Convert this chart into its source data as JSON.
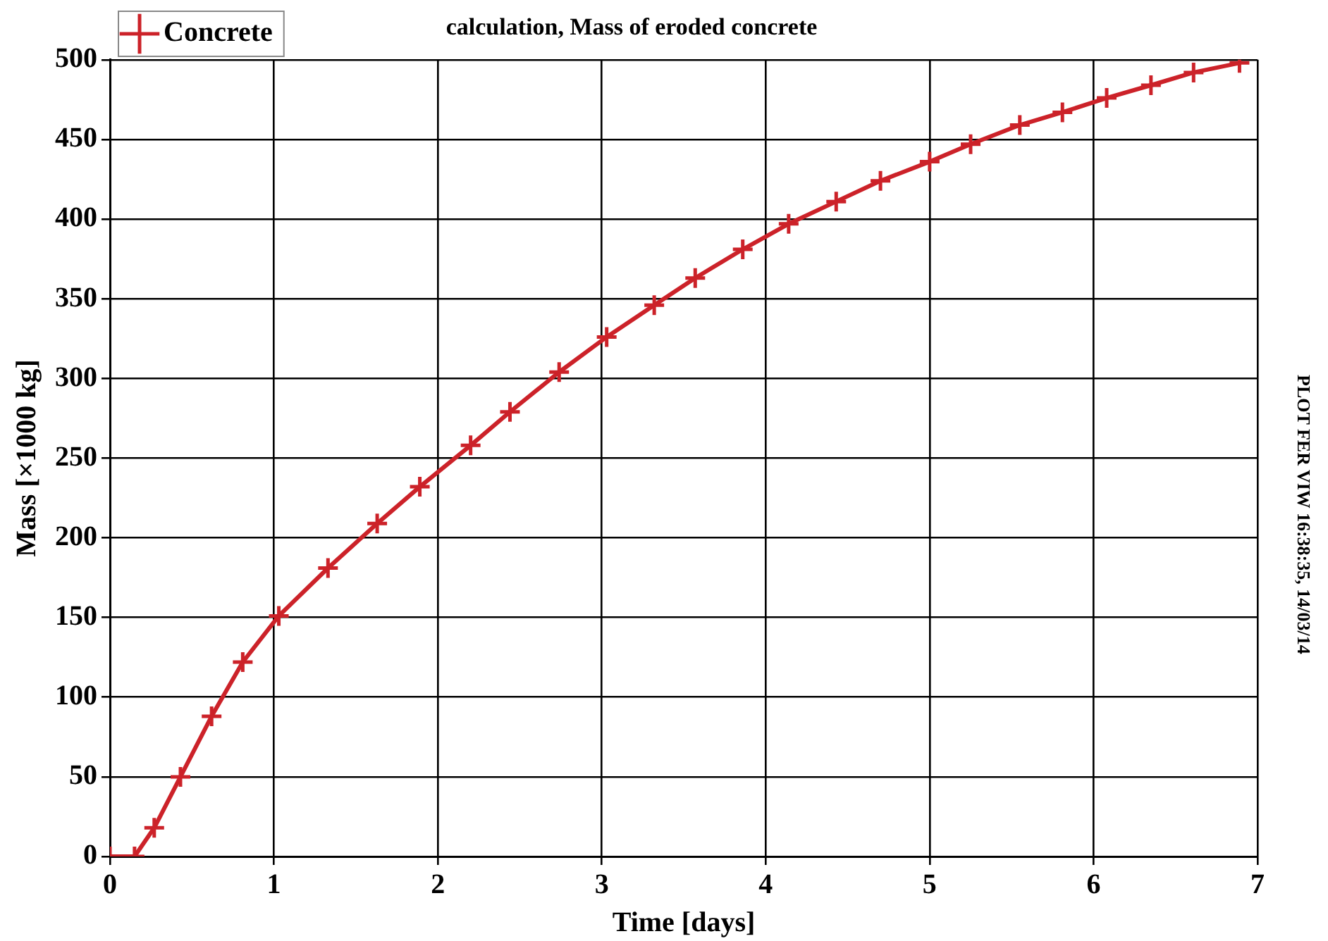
{
  "chart_data": {
    "type": "line",
    "title": "calculation, Mass of eroded concrete",
    "xlabel": "Time [days]",
    "ylabel": "Mass [×1000 kg]",
    "annotations": [
      "PLOT FER VIW 16:38:35, 14/03/14"
    ],
    "series": [
      {
        "name": "Concrete",
        "color": "#cc2229",
        "x": [
          0,
          0.15,
          0.27,
          0.43,
          0.62,
          0.81,
          1.03,
          1.33,
          1.63,
          1.89,
          2.2,
          2.44,
          2.74,
          3.03,
          3.32,
          3.57,
          3.86,
          4.14,
          4.43,
          4.7,
          5.0,
          5.25,
          5.55,
          5.81,
          6.08,
          6.35,
          6.61,
          6.89
        ],
        "values": [
          0,
          0,
          18,
          50,
          88,
          122,
          151,
          181,
          209,
          232,
          258,
          279,
          304,
          326,
          346,
          363,
          381,
          397,
          411,
          424,
          436,
          447,
          459,
          467,
          476,
          484,
          492,
          498
        ]
      }
    ],
    "xlim": [
      0,
      7
    ],
    "xticks": [
      0,
      1,
      2,
      3,
      4,
      5,
      6,
      7
    ],
    "ylim": [
      0,
      500
    ],
    "yticks": [
      0,
      50,
      100,
      150,
      200,
      250,
      300,
      350,
      400,
      450,
      500
    ],
    "grid": true,
    "legend": "top left",
    "marker": "cross",
    "line_style": "solid"
  }
}
